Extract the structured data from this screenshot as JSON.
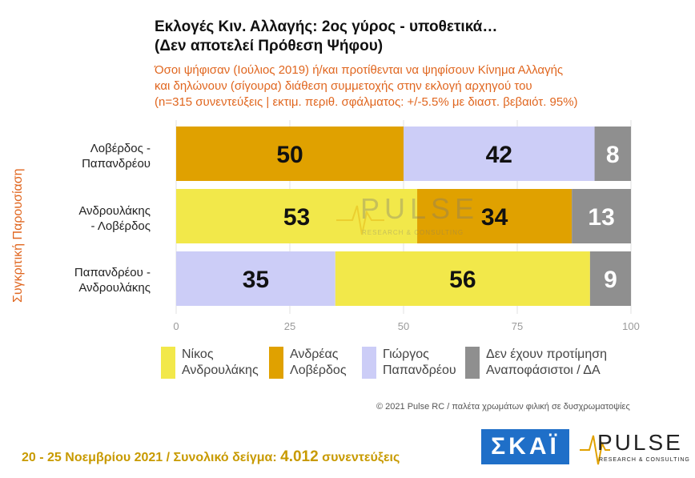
{
  "title_line1": "Εκλογές Κιν. Αλλαγής: 2ος γύρος - υποθετικά…",
  "title_line2": "(Δεν αποτελεί Πρόθεση Ψήφου)",
  "subtitle_line1": "Όσοι ψήφισαν (Ιούλιος 2019) ή/και προτίθενται να ψηφίσουν Κίνημα Αλλαγής",
  "subtitle_line2": "και δηλώνουν (σίγουρα) διάθεση συμμετοχής στην εκλογή αρχηγού του",
  "subtitle_line3": "(n=315 συνεντεύξεις | εκτιμ. περιθ. σφάλματος: +/-5.5% με διαστ. βεβαιότ. 95%)",
  "chart_data": {
    "type": "bar",
    "orientation": "horizontal",
    "stacked": true,
    "ylabel": "Συγκριτική Παρουσίαση",
    "xlim": [
      0,
      100
    ],
    "xticks": [
      "0",
      "25",
      "50",
      "75",
      "100"
    ],
    "rows": [
      {
        "label_line1": "Λοβέρδος -",
        "label_line2": "Παπανδρέου",
        "segments": [
          {
            "value": 50,
            "label": "50",
            "series": "Ανδρέας Λοβέρδος"
          },
          {
            "value": 42,
            "label": "42",
            "series": "Γιώργος Παπανδρέου"
          },
          {
            "value": 8,
            "label": "8",
            "series": "Δεν έχουν προτίμηση Αναποφάσιστοι / ΔΑ"
          }
        ]
      },
      {
        "label_line1": "Ανδρουλάκης",
        "label_line2": "- Λοβέρδος",
        "segments": [
          {
            "value": 53,
            "label": "53",
            "series": "Νίκος Ανδρουλάκης"
          },
          {
            "value": 34,
            "label": "34",
            "series": "Ανδρέας Λοβέρδος"
          },
          {
            "value": 13,
            "label": "13",
            "series": "Δεν έχουν προτίμηση Αναποφάσιστοι / ΔΑ"
          }
        ]
      },
      {
        "label_line1": "Παπανδρέου -",
        "label_line2": "Ανδρουλάκης",
        "segments": [
          {
            "value": 35,
            "label": "35",
            "series": "Γιώργος Παπανδρέου"
          },
          {
            "value": 56,
            "label": "56",
            "series": "Νίκος Ανδρουλάκης"
          },
          {
            "value": 9,
            "label": "9",
            "series": "Δεν έχουν προτίμηση Αναποφάσιστοι / ΔΑ"
          }
        ]
      }
    ],
    "legend": [
      {
        "line1": "Νίκος",
        "line2": "Ανδρουλάκης",
        "series": "Νίκος Ανδρουλάκης",
        "color": "#f2e84a"
      },
      {
        "line1": "Ανδρέας",
        "line2": "Λοβέρδος",
        "series": "Ανδρέας Λοβέρδος",
        "color": "#e0a100"
      },
      {
        "line1": "Γιώργος",
        "line2": "Παπανδρέου",
        "series": "Γιώργος Παπανδρέου",
        "color": "#cccdf7"
      },
      {
        "line1": "Δεν έχουν προτίμηση",
        "line2": "Αναποφάσιστοι / ΔΑ",
        "series": "Δεν έχουν προτίμηση Αναποφάσιστοι / ΔΑ",
        "color": "#8f8f8f"
      }
    ]
  },
  "copyright": "© 2021 Pulse RC  /  παλέτα χρωμάτων φιλική σε δυσχρωματοψίες",
  "footer_dates": "20 - 25  Νοεμβρίου 2021  /  Συνολικό δείγμα:",
  "footer_sample": "4.012",
  "footer_unit": "συνεντεύξεις",
  "logo_skai": "ΣΚΑΪ",
  "logo_pulse": "PULSE",
  "logo_pulse_sub": "RESEARCH & CONSULTING",
  "watermark_text": "PULSE",
  "watermark_sub": "RESEARCH & CONSULTING",
  "colors": {
    "segment_text_dark": "#111111",
    "segment_text_light": "#ffffff"
  }
}
